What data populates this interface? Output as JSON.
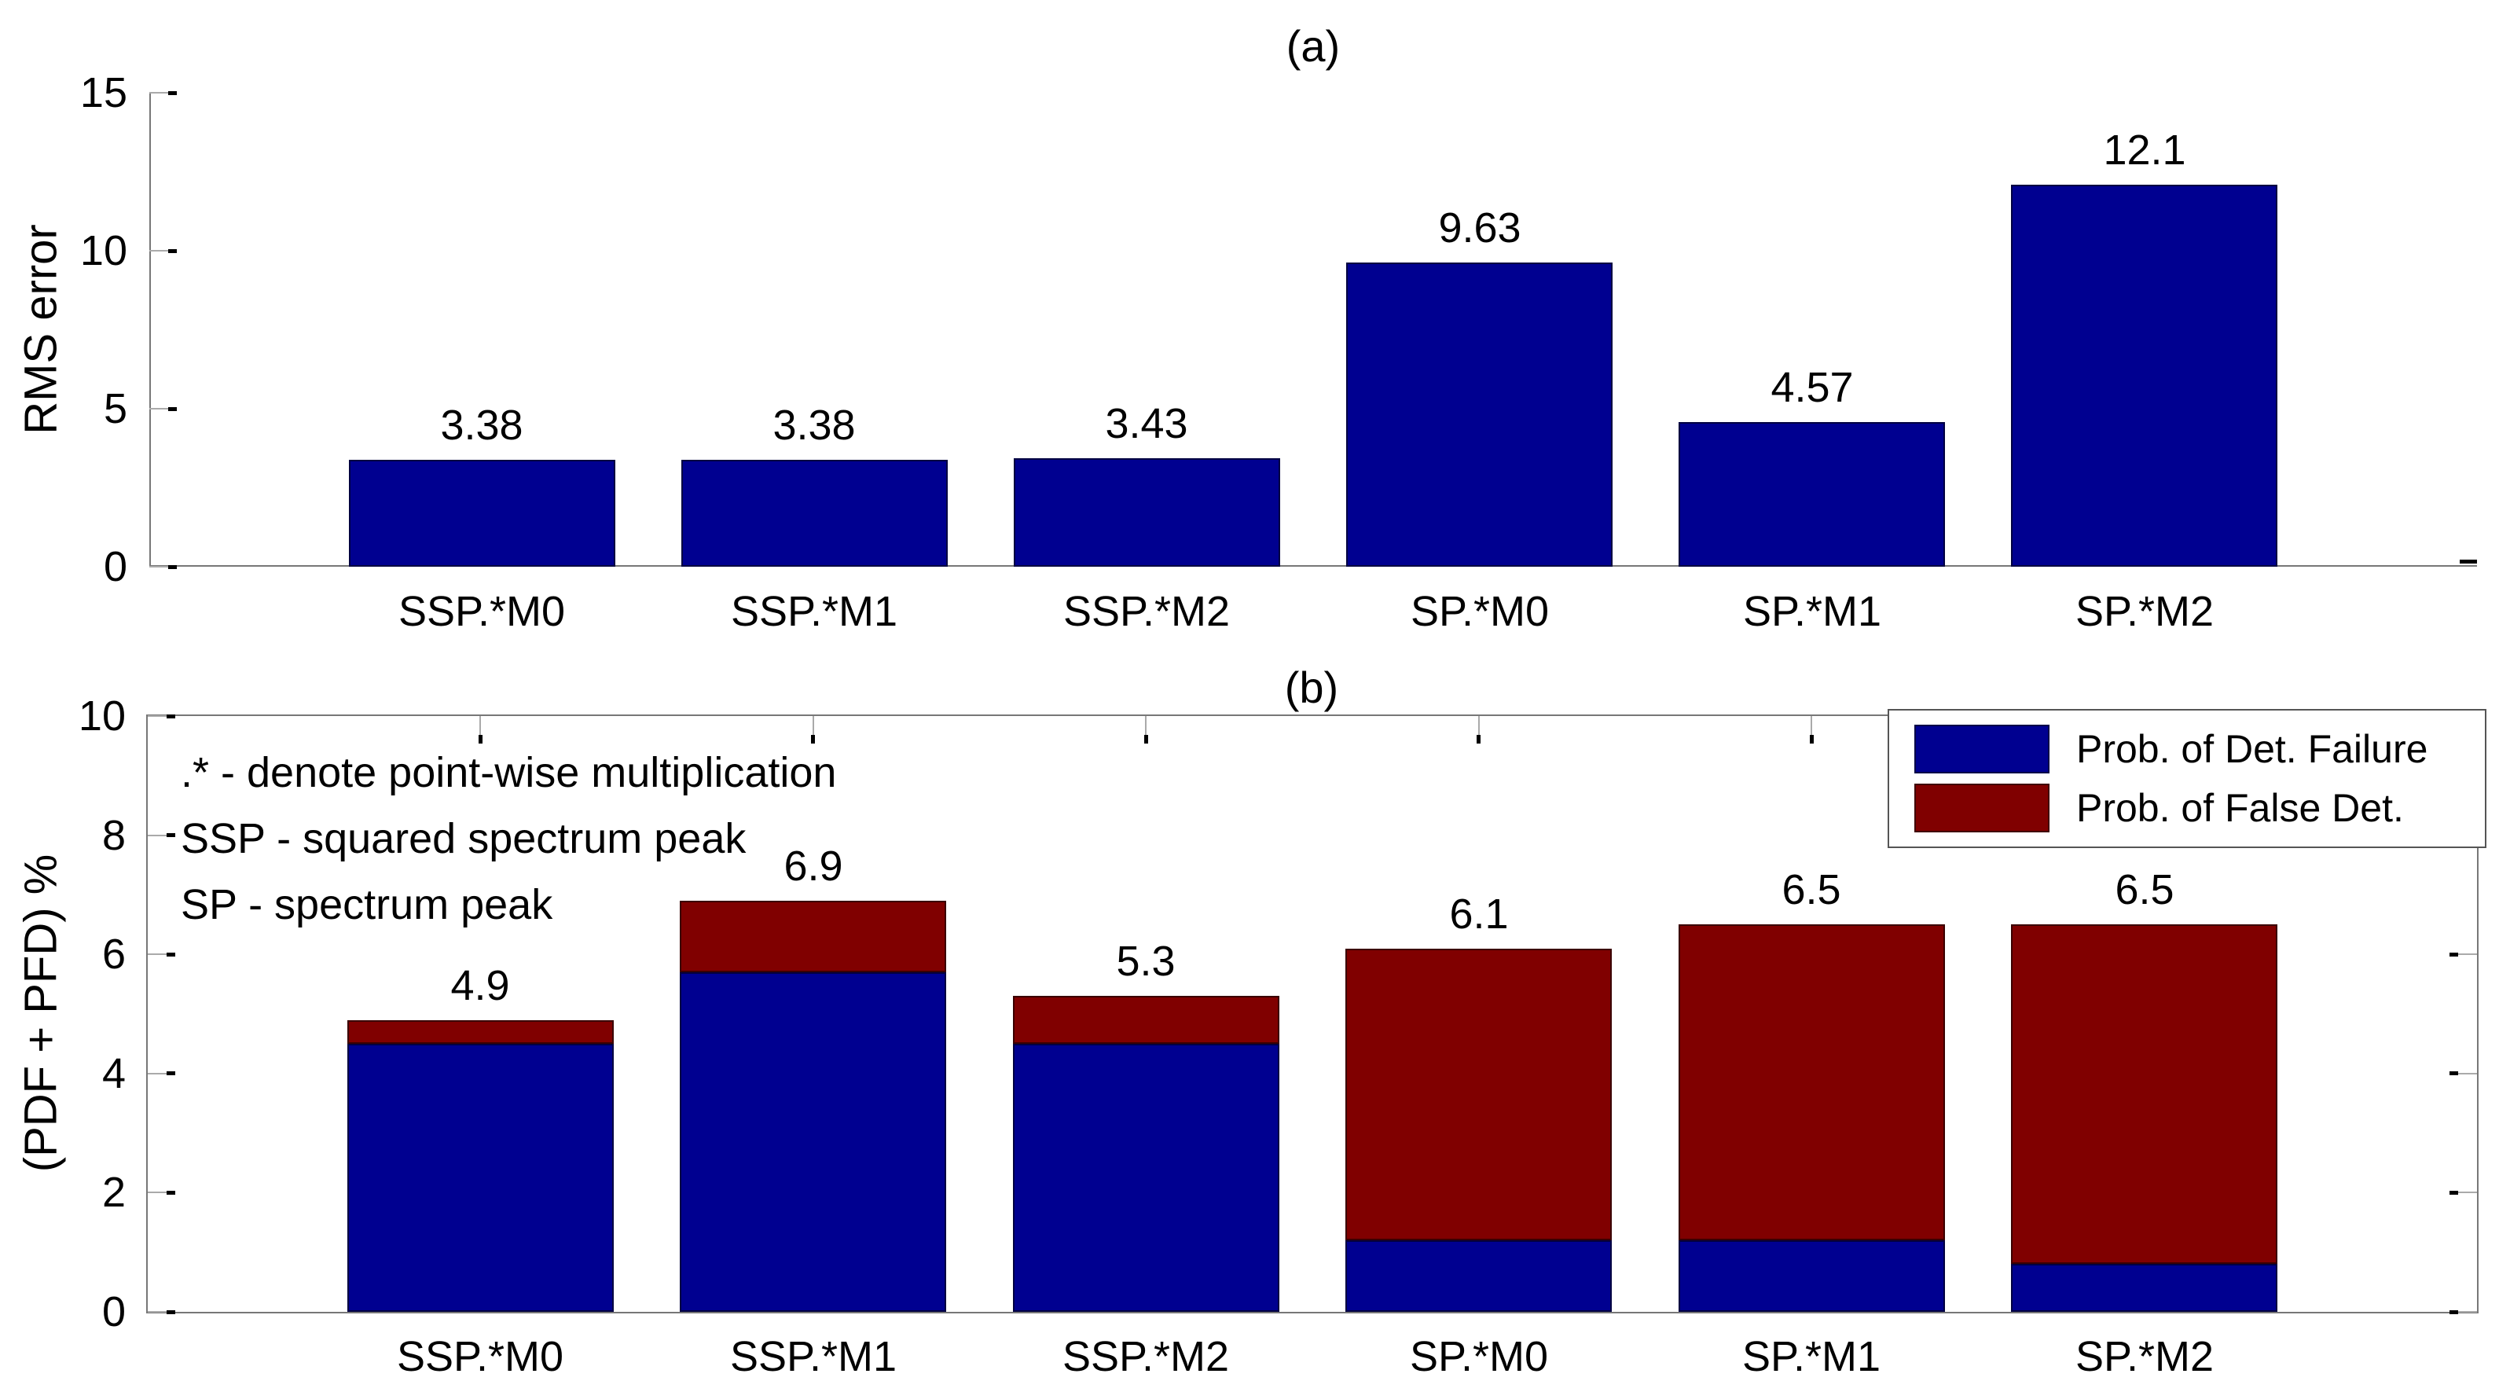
{
  "figure": {
    "background": "#ffffff",
    "axis_color": "#777777",
    "tick_color": "#000000"
  },
  "chart_data": [
    {
      "id": "a",
      "type": "bar",
      "title": "(a)",
      "ylabel": "RMS error",
      "xlabel": "",
      "categories": [
        "SSP.*M0",
        "SSP.*M1",
        "SSP.*M2",
        "SP.*M0",
        "SP.*M1",
        "SP.*M2"
      ],
      "values": [
        3.38,
        3.38,
        3.43,
        9.63,
        4.57,
        12.1
      ],
      "value_labels": [
        "3.38",
        "3.38",
        "3.43",
        "9.63",
        "4.57",
        "12.1"
      ],
      "yticks": [
        0,
        5,
        10,
        15
      ],
      "ylim": [
        0,
        15
      ],
      "bar_color": "#000090",
      "grid": false,
      "box": false
    },
    {
      "id": "b",
      "type": "bar",
      "subtype": "stacked",
      "title": "(b)",
      "ylabel": "(PDF + PFD) %",
      "xlabel": "",
      "categories": [
        "SSP.*M0",
        "SSP.*M1",
        "SSP.*M2",
        "SP.*M0",
        "SP.*M1",
        "SP.*M2"
      ],
      "series": [
        {
          "name": "Prob. of Det. Failure",
          "color": "#000090",
          "values": [
            4.5,
            5.7,
            4.5,
            1.2,
            1.2,
            0.8
          ]
        },
        {
          "name": "Prob. of False Det.",
          "color": "#800000",
          "values": [
            0.4,
            1.2,
            0.8,
            4.9,
            5.3,
            5.7
          ]
        }
      ],
      "totals": [
        4.9,
        6.9,
        5.3,
        6.1,
        6.5,
        6.5
      ],
      "total_labels": [
        "4.9",
        "6.9",
        "5.3",
        "6.1",
        "6.5",
        "6.5"
      ],
      "yticks": [
        0,
        2,
        4,
        6,
        8,
        10
      ],
      "ylim": [
        0,
        10
      ],
      "grid": false,
      "box": true,
      "legend_position": "top-right",
      "annotations": [
        ".* - denote point-wise multiplication",
        "SSP - squared spectrum peak",
        "SP - spectrum peak"
      ]
    }
  ]
}
